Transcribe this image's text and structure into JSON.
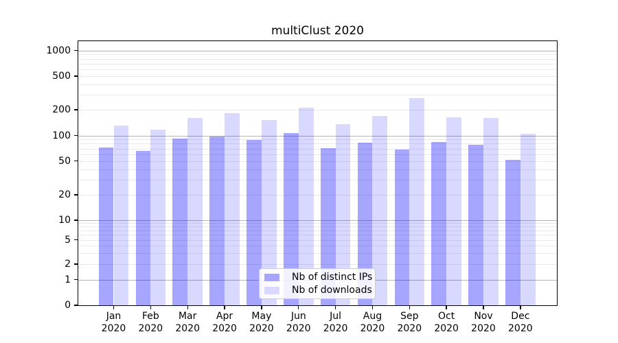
{
  "chart_data": {
    "type": "bar",
    "title": "multiClust 2020",
    "categories": [
      "Jan 2020",
      "Feb 2020",
      "Mar 2020",
      "Apr 2020",
      "May 2020",
      "Jun 2020",
      "Jul 2020",
      "Aug 2020",
      "Sep 2020",
      "Oct 2020",
      "Nov 2020",
      "Dec 2020"
    ],
    "series": [
      {
        "name": "Nb of distinct IPs",
        "color": "rgba(0,0,255,0.35)",
        "color_hex": "#a6a6ff",
        "values": [
          72,
          65,
          92,
          98,
          89,
          106,
          71,
          82,
          68,
          83,
          78,
          51
        ]
      },
      {
        "name": "Nb of downloads",
        "color": "rgba(0,0,255,0.15)",
        "color_hex": "#d9d9ff",
        "values": [
          130,
          117,
          160,
          183,
          152,
          210,
          136,
          170,
          275,
          164,
          160,
          105
        ]
      }
    ],
    "y_axis": {
      "scale": "symlog",
      "ticks": [
        0,
        1,
        2,
        5,
        10,
        20,
        50,
        100,
        200,
        500,
        1000
      ],
      "range": [
        0,
        1000
      ],
      "major_gridlines": [
        1,
        10,
        100,
        1000
      ],
      "major_gridline_color": "#b4b4b4",
      "minor_gridline_color": "#e9e9e9"
    },
    "x_axis": {
      "label_line2": "2020"
    },
    "legend": {
      "position": "lower-center",
      "entries": [
        "Nb of distinct IPs",
        "Nb of downloads"
      ]
    },
    "grid": true
  }
}
